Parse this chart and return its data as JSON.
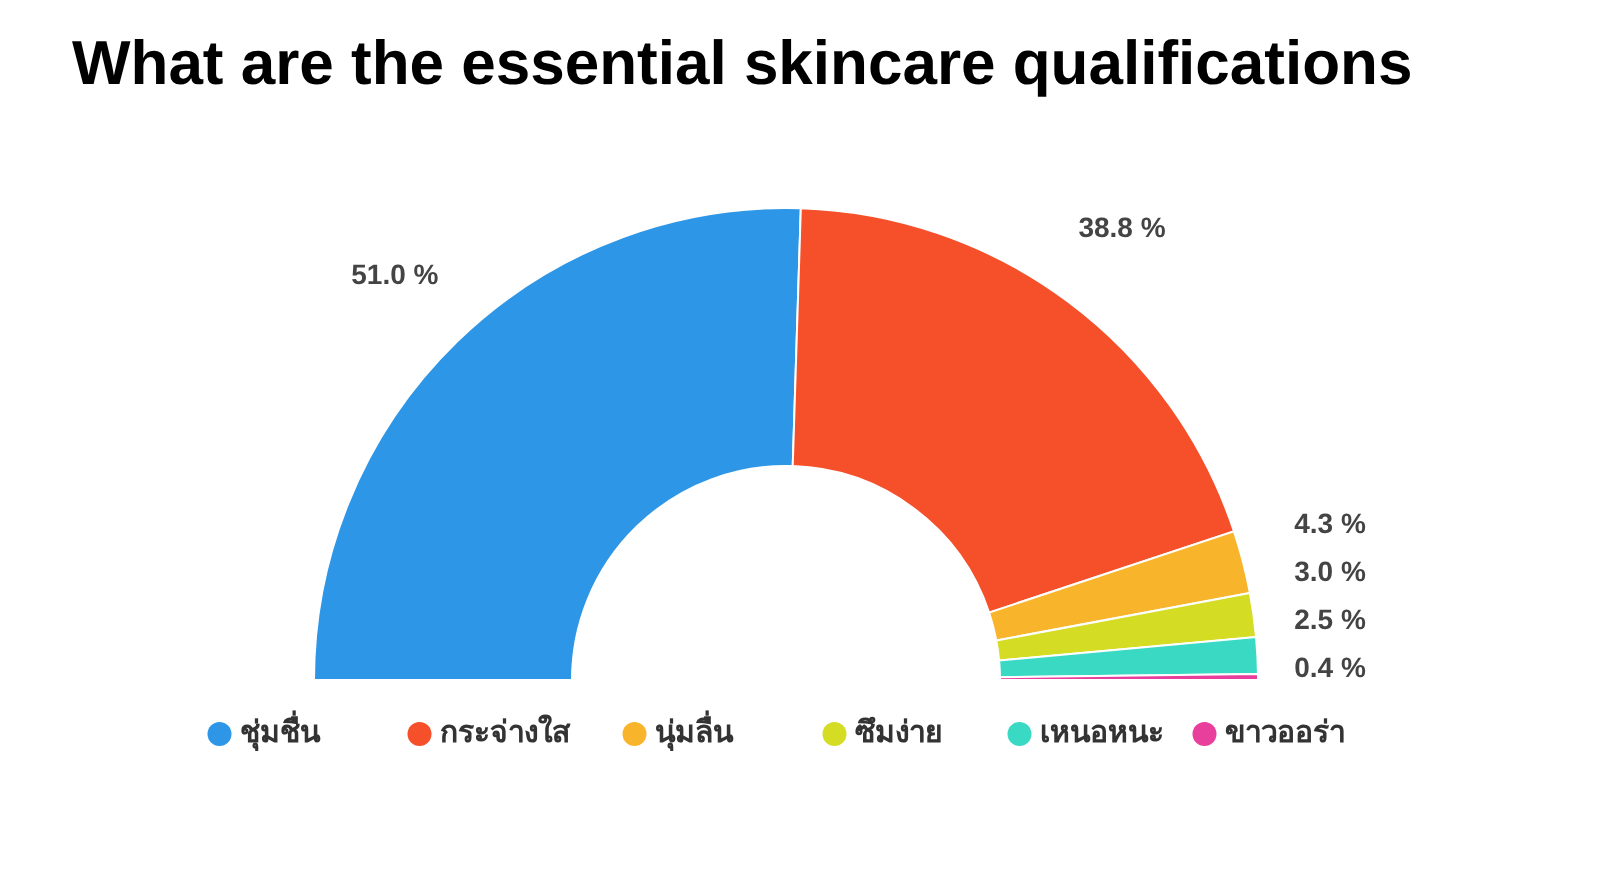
{
  "chart_data": {
    "type": "donut",
    "title": "What are the essential skincare qualifications",
    "categories": [
      "ชุ่มชื่น",
      "กระจ่างใส",
      "นุ่มลื่น",
      "ซึมง่าย",
      "เหนอหนะ",
      "ขาวออร่า"
    ],
    "values": [
      51.0,
      38.8,
      4.3,
      3.0,
      2.5,
      0.4
    ],
    "value_labels": [
      "51.0 %",
      "38.8 %",
      "4.3 %",
      "3.0 %",
      "2.5 %",
      "0.4 %"
    ],
    "colors": [
      "#2e96e6",
      "#f5502a",
      "#f8b52c",
      "#d5dc24",
      "#3ad9c4",
      "#e83e9c"
    ],
    "legend": "bottom"
  }
}
